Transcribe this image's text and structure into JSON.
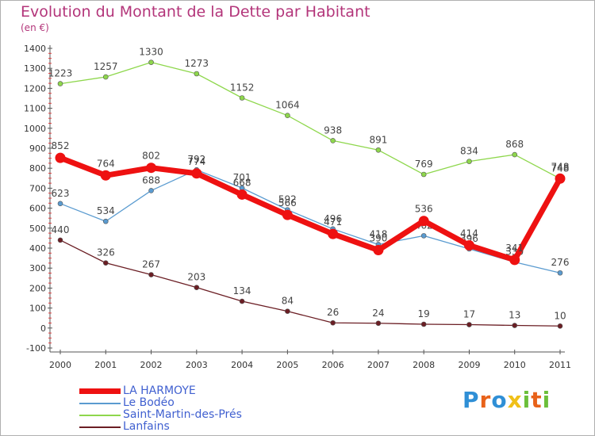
{
  "title": "Evolution du Montant de la Dette par Habitant",
  "unit": "(en €)",
  "chart_data": {
    "type": "line",
    "title": "Evolution du Montant de la Dette par Habitant",
    "ylabel": "(en €)",
    "xlabel": "",
    "ylim": [
      -100,
      1400
    ],
    "yticks": [
      -100,
      0,
      100,
      200,
      300,
      400,
      500,
      600,
      700,
      800,
      900,
      1000,
      1100,
      1200,
      1300,
      1400
    ],
    "x": [
      "2000",
      "2001",
      "2002",
      "2003",
      "2004",
      "2005",
      "2006",
      "2007",
      "2008",
      "2009",
      "2010",
      "2011"
    ],
    "grid": false,
    "legend": "bottom-left",
    "series": [
      {
        "name": "Saint-Martin-des-Prés",
        "color": "#8ed74c",
        "values": [
          1223,
          1257,
          1330,
          1273,
          1152,
          1064,
          938,
          891,
          769,
          834,
          868,
          748
        ]
      },
      {
        "name": "Le Bodéo",
        "color": "#5a9bd0",
        "values": [
          623,
          534,
          688,
          792,
          701,
          592,
          496,
          418,
          462,
          396,
          330,
          276
        ]
      },
      {
        "name": "Lanfains",
        "color": "#6b1e24",
        "values": [
          440,
          326,
          267,
          203,
          134,
          84,
          26,
          24,
          19,
          17,
          13,
          10
        ]
      },
      {
        "name": "LA HARMOYE",
        "color": "#ee1111",
        "values": [
          852,
          764,
          802,
          774,
          668,
          566,
          471,
          390,
          536,
          414,
          341,
          748
        ]
      }
    ],
    "legend_order": [
      "LA HARMOYE",
      "Le Bodéo",
      "Saint-Martin-des-Prés",
      "Lanfains"
    ]
  },
  "logo": {
    "letters": [
      "P",
      "r",
      "o",
      "x",
      "i",
      "t",
      "i"
    ],
    "colors": [
      "#2f8fd6",
      "#e8621a",
      "#2f8fd6",
      "#f0c018",
      "#6cbf3a",
      "#e8621a",
      "#6cbf3a"
    ]
  }
}
